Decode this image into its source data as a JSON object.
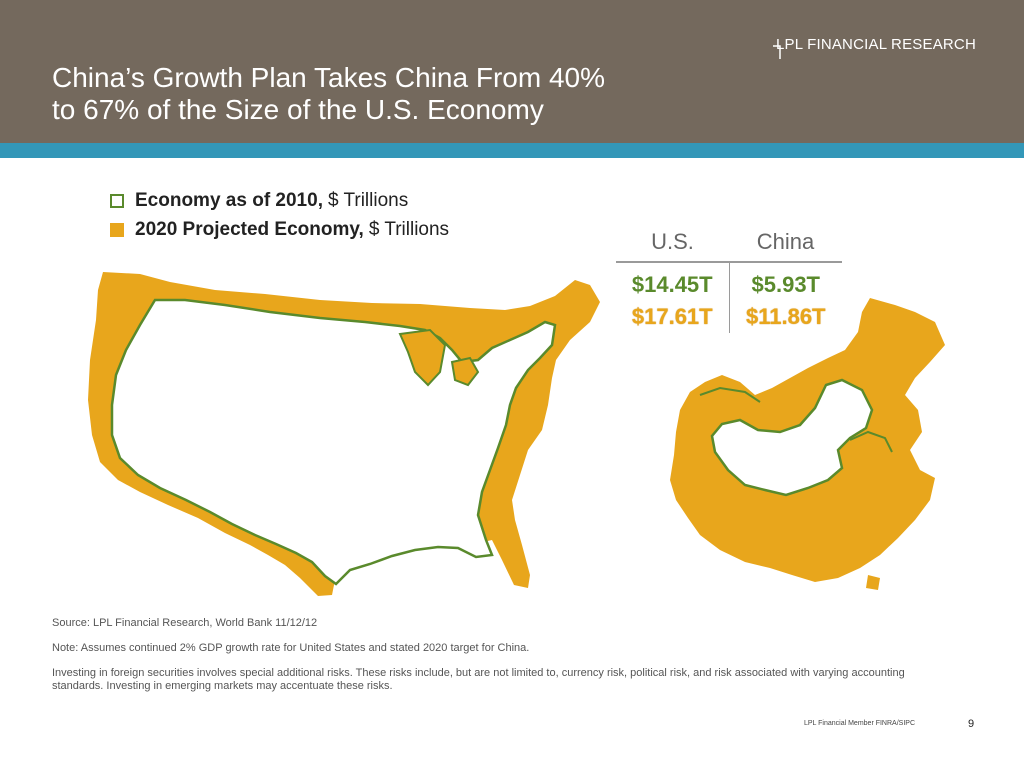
{
  "header": {
    "brand": "LPL FINANCIAL RESEARCH",
    "title_line1": "China’s Growth Plan Takes China From 40%",
    "title_line2": "to 67% of the Size of the U.S. Economy",
    "bg_color": "#74695d",
    "bar_color": "#3397b8"
  },
  "legend": [
    {
      "label": "Economy as of 2010,",
      "unit": "$ Trillions",
      "style": "outline",
      "color": "#5a8a2c"
    },
    {
      "label": "2020 Projected Economy,",
      "unit": "$ Trillions",
      "style": "fill",
      "color": "#e8a61c"
    }
  ],
  "table": {
    "columns": [
      "U.S.",
      "China"
    ],
    "values_2010": [
      "$14.45T",
      "$5.93T"
    ],
    "values_2020": [
      "$17.61T",
      "$11.86T"
    ]
  },
  "notes": {
    "source": "Source: LPL Financial Research, World Bank 11/12/12",
    "note": "Note: Assumes continued 2% GDP growth rate for United States and stated 2020 target for China.",
    "disclaimer": "Investing in foreign securities involves special additional risks. These risks include, but are not limited to, currency risk, political risk, and risk associated with varying accounting standards. Investing in emerging markets may accentuate these risks."
  },
  "footer": {
    "company": "LPL Financial   Member FINRA/SIPC",
    "page": "9"
  }
}
